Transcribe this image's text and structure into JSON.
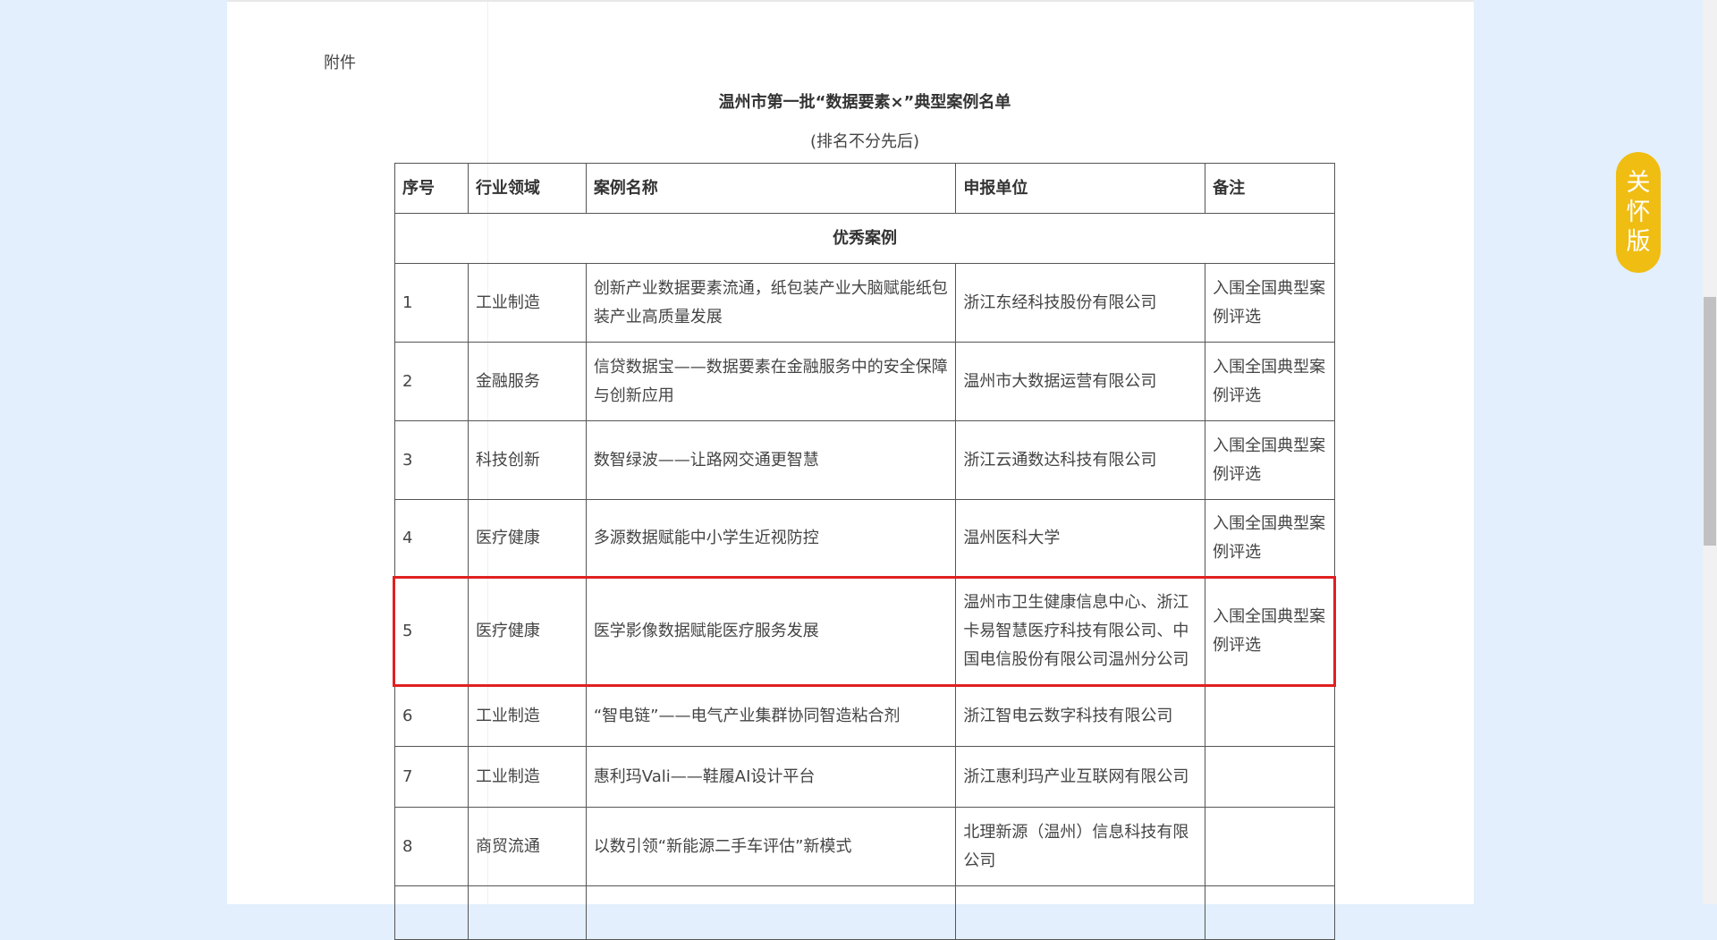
{
  "attachment_label": "附件",
  "title": "温州市第一批“数据要素×”典型案例名单",
  "subtitle": "(排名不分先后)",
  "table": {
    "headers": [
      "序号",
      "行业领域",
      "案例名称",
      "申报单位",
      "备注"
    ],
    "section": "优秀案例",
    "rows": [
      {
        "no": "1",
        "field": "工业制造",
        "name": "创新产业数据要素流通，纸包装产业大脑赋能纸包装产业高质量发展",
        "unit": "浙江东经科技股份有限公司",
        "note": "入围全国典型案例评选"
      },
      {
        "no": "2",
        "field": "金融服务",
        "name": "信贷数据宝——数据要素在金融服务中的安全保障与创新应用",
        "unit": "温州市大数据运营有限公司",
        "note": "入围全国典型案例评选"
      },
      {
        "no": "3",
        "field": "科技创新",
        "name": "数智绿波——让路网交通更智慧",
        "unit": "浙江云通数达科技有限公司",
        "note": "入围全国典型案例评选"
      },
      {
        "no": "4",
        "field": "医疗健康",
        "name": "多源数据赋能中小学生近视防控",
        "unit": "温州医科大学",
        "note": "入围全国典型案例评选"
      },
      {
        "no": "5",
        "field": "医疗健康",
        "name": "医学影像数据赋能医疗服务发展",
        "unit": "温州市卫生健康信息中心、浙江卡易智慧医疗科技有限公司、中国电信股份有限公司温州分公司",
        "note": "入围全国典型案例评选"
      },
      {
        "no": "6",
        "field": "工业制造",
        "name": "“智电链”——电气产业集群协同智造粘合剂",
        "unit": "浙江智电云数字科技有限公司",
        "note": ""
      },
      {
        "no": "7",
        "field": "工业制造",
        "name": "惠利玛Vali——鞋履AI设计平台",
        "unit": "浙江惠利玛产业互联网有限公司",
        "note": ""
      },
      {
        "no": "8",
        "field": "商贸流通",
        "name": "以数引领“新能源二手车评估”新模式",
        "unit": "北理新源（温州）信息科技有限公司",
        "note": ""
      },
      {
        "no": "",
        "field": "",
        "name": "",
        "unit": "",
        "note": ""
      }
    ]
  },
  "care_button": "关怀版",
  "colors": {
    "background": "#e3effc",
    "highlight": "#e02020",
    "care": "#f0bd12"
  }
}
